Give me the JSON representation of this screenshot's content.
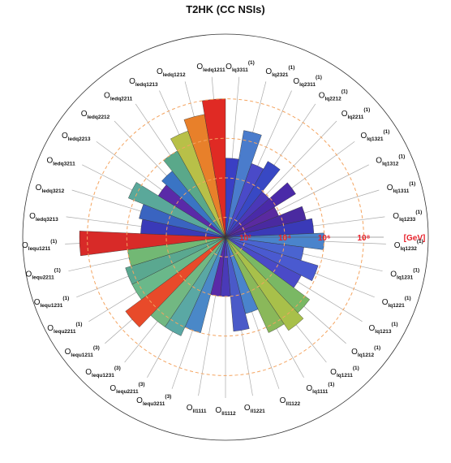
{
  "chart_data": {
    "type": "polar-bar",
    "title": "T2HK (CC NSIs)",
    "radial_axis": {
      "scale": "log",
      "unit": "[GeV]",
      "tick_labels": [
        "10²",
        "10⁴",
        "10⁶",
        "10⁸"
      ],
      "tick_values": [
        100,
        10000,
        1000000,
        100000000
      ],
      "gridline_color": "#f4a460"
    },
    "bars": [
      {
        "op": "O",
        "sub": "lq3311",
        "sup": "(1)",
        "value": 100000,
        "color": "#3a3fc4"
      },
      {
        "op": "O",
        "sub": "lq2321",
        "sup": "(1)",
        "value": 3000000,
        "color": "#4a7ccc"
      },
      {
        "op": "O",
        "sub": "lq2311",
        "sup": "(1)",
        "value": 90000,
        "color": "#4a4ac8"
      },
      {
        "op": "O",
        "sub": "lq2212",
        "sup": "(1)",
        "value": 250000,
        "color": "#3848c4"
      },
      {
        "op": "O",
        "sub": "lq2211",
        "sup": "(1)",
        "value": 9000,
        "color": "#4a38b8"
      },
      {
        "op": "O",
        "sub": "lq1321",
        "sup": "(1)",
        "value": 150000,
        "color": "#4a2aa8"
      },
      {
        "op": "O",
        "sub": "lq1312",
        "sup": "(1)",
        "value": 8000,
        "color": "#5a2aa0"
      },
      {
        "op": "O",
        "sub": "lq1311",
        "sup": "(1)",
        "value": 150000,
        "color": "#4a2aa0"
      },
      {
        "op": "O",
        "sub": "lq1233",
        "sup": "(1)",
        "value": 300000,
        "color": "#3a3ab8"
      },
      {
        "op": "O",
        "sub": "lq1232",
        "sup": "(1)",
        "value": 1000000,
        "color": "#4a84cc"
      },
      {
        "op": "O",
        "sub": "lq1231",
        "sup": "(1)",
        "value": 100000,
        "color": "#4a64d0"
      },
      {
        "op": "O",
        "sub": "lq1221",
        "sup": "(1)",
        "value": 800000,
        "color": "#4a5ad0"
      },
      {
        "op": "O",
        "sub": "lq1213",
        "sup": "(1)",
        "value": 200000,
        "color": "#4a4ac8"
      },
      {
        "op": "O",
        "sub": "lq1212",
        "sup": "(1)",
        "value": 2000000,
        "color": "#7ab864"
      },
      {
        "op": "O",
        "sub": "lq1211",
        "sup": "(1)",
        "value": 5000000,
        "color": "#a8c04a"
      },
      {
        "op": "O",
        "sub": "lq1111",
        "sup": "(1)",
        "value": 2000000,
        "color": "#8ab85a"
      },
      {
        "op": "O",
        "sub": "ll1122",
        "sup": "",
        "value": 100000,
        "color": "#4a84cc"
      },
      {
        "op": "O",
        "sub": "ll1221",
        "sup": "",
        "value": 600000,
        "color": "#4a5ac8"
      },
      {
        "op": "O",
        "sub": "ll1112",
        "sup": "",
        "value": 10000,
        "color": "#4a3ab8"
      },
      {
        "op": "O",
        "sub": "ll1111",
        "sup": "",
        "value": 10000,
        "color": "#5a2aa8"
      },
      {
        "op": "O",
        "sub": "lequ3211",
        "sup": "(3)",
        "value": 1000000,
        "color": "#4a88c8"
      },
      {
        "op": "O",
        "sub": "lequ2211",
        "sup": "(3)",
        "value": 3000000,
        "color": "#5aa8a4"
      },
      {
        "op": "O",
        "sub": "lequ1231",
        "sup": "(3)",
        "value": 3000000,
        "color": "#72b882"
      },
      {
        "op": "O",
        "sub": "lequ1211",
        "sup": "(3)",
        "value": 20000000,
        "color": "#e84a2a"
      },
      {
        "op": "O",
        "sub": "lequ2211",
        "sup": "(1)",
        "value": 2000000,
        "color": "#6ab88a"
      },
      {
        "op": "O",
        "sub": "lequ1231",
        "sup": "(1)",
        "value": 2000000,
        "color": "#5aa890"
      },
      {
        "op": "O",
        "sub": "lequ2211",
        "sup": "(1)",
        "value": 1000000,
        "color": "#72b874"
      },
      {
        "op": "O",
        "sub": "lequ1211",
        "sup": "(1)",
        "value": 250000000,
        "color": "#d82a28"
      },
      {
        "op": "O",
        "sub": "ledq3213",
        "sup": "",
        "value": 200000,
        "color": "#3a3ab8"
      },
      {
        "op": "O",
        "sub": "ledq3212",
        "sup": "",
        "value": 300000,
        "color": "#3a64c0"
      },
      {
        "op": "O",
        "sub": "ledq3211",
        "sup": "",
        "value": 2000000,
        "color": "#5aa89a"
      },
      {
        "op": "O",
        "sub": "ledq2213",
        "sup": "",
        "value": 100000,
        "color": "#5a2aa8"
      },
      {
        "op": "O",
        "sub": "ledq2212",
        "sup": "",
        "value": 200000,
        "color": "#3a74c4"
      },
      {
        "op": "O",
        "sub": "ledq2211",
        "sup": "",
        "value": 1000000,
        "color": "#5aa88a"
      },
      {
        "op": "O",
        "sub": "ledq1213",
        "sup": "",
        "value": 5000000,
        "color": "#b8c048"
      },
      {
        "op": "O",
        "sub": "ledq1212",
        "sup": "",
        "value": 20000000,
        "color": "#e8802a"
      },
      {
        "op": "O",
        "sub": "ledq1211",
        "sup": "",
        "value": 100000000,
        "color": "#e02a24"
      }
    ]
  }
}
